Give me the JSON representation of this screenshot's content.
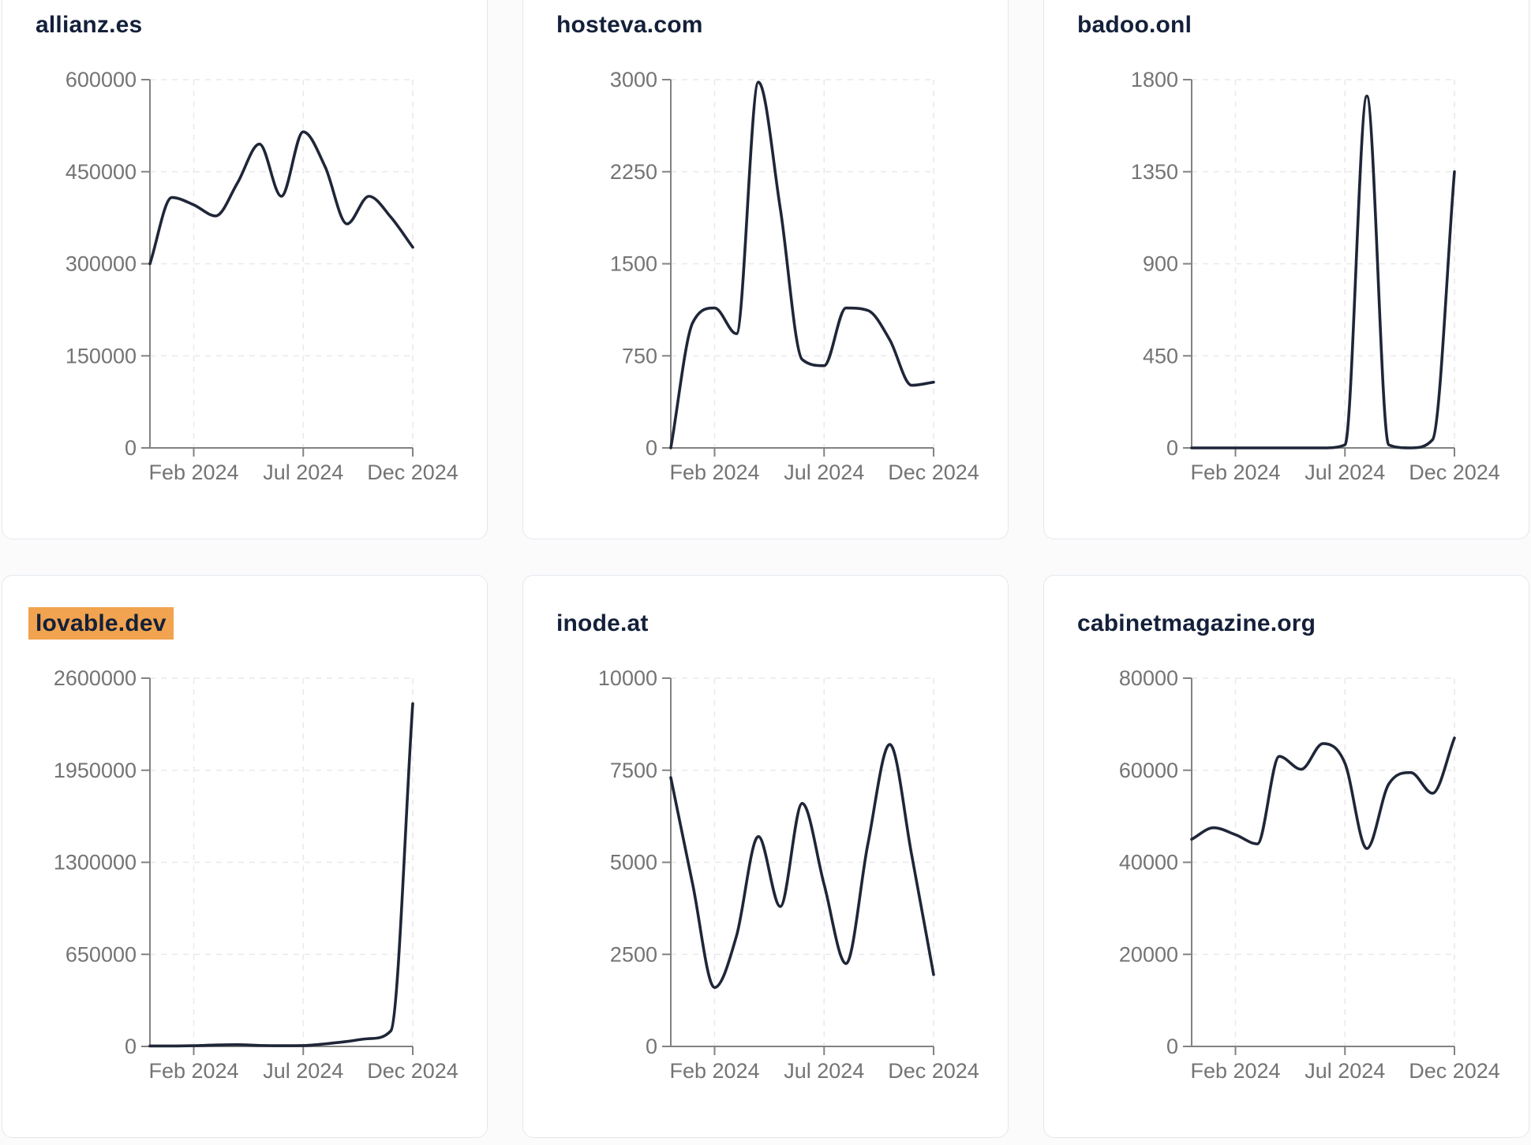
{
  "style": {
    "line_color": "#1f2638",
    "highlight_color": "#f1a34f",
    "axis_color": "#828282",
    "tick_label_color": "#747474",
    "gridline_color": "#e9e9e9",
    "card_border_color": "#e3e8ee",
    "title_color": "#14203a"
  },
  "chart_data": [
    {
      "type": "line",
      "title": "allianz.es",
      "highlighted": false,
      "x": [
        "Dec 2023",
        "Jan 2024",
        "Feb 2024",
        "Mar 2024",
        "Apr 2024",
        "May 2024",
        "Jun 2024",
        "Jul 2024",
        "Aug 2024",
        "Sep 2024",
        "Oct 2024",
        "Nov 2024",
        "Dec 2024"
      ],
      "values": [
        300000,
        408000,
        396000,
        378000,
        432000,
        495000,
        410000,
        515000,
        458000,
        365000,
        410000,
        376000,
        327000
      ],
      "ylim": [
        0,
        600000
      ],
      "y_ticks": [
        0,
        150000,
        300000,
        450000,
        600000
      ],
      "x_tick_labels": [
        "Feb 2024",
        "Jul 2024",
        "Dec 2024"
      ],
      "x_tick_indices": [
        2,
        7,
        12
      ],
      "grid": "dashed"
    },
    {
      "type": "line",
      "title": "hosteva.com",
      "highlighted": false,
      "x": [
        "Dec 2023",
        "Jan 2024",
        "Feb 2024",
        "Mar 2024",
        "Apr 2024",
        "May 2024",
        "Jun 2024",
        "Jul 2024",
        "Aug 2024",
        "Sep 2024",
        "Oct 2024",
        "Nov 2024",
        "Dec 2024"
      ],
      "values": [
        0,
        1020,
        1140,
        930,
        2980,
        1950,
        720,
        670,
        1140,
        1120,
        880,
        510,
        535
      ],
      "ylim": [
        0,
        3000
      ],
      "y_ticks": [
        0,
        750,
        1500,
        2250,
        3000
      ],
      "x_tick_labels": [
        "Feb 2024",
        "Jul 2024",
        "Dec 2024"
      ],
      "x_tick_indices": [
        2,
        7,
        12
      ],
      "grid": "dashed"
    },
    {
      "type": "line",
      "title": "badoo.onl",
      "highlighted": false,
      "x": [
        "Dec 2023",
        "Jan 2024",
        "Feb 2024",
        "Mar 2024",
        "Apr 2024",
        "May 2024",
        "Jun 2024",
        "Jul 2024",
        "Aug 2024",
        "Sep 2024",
        "Oct 2024",
        "Nov 2024",
        "Dec 2024"
      ],
      "values": [
        0,
        0,
        0,
        0,
        0,
        0,
        0,
        15,
        1720,
        15,
        0,
        40,
        1350
      ],
      "ylim": [
        0,
        1800
      ],
      "y_ticks": [
        0,
        450,
        900,
        1350,
        1800
      ],
      "x_tick_labels": [
        "Feb 2024",
        "Jul 2024",
        "Dec 2024"
      ],
      "x_tick_indices": [
        2,
        7,
        12
      ],
      "grid": "dashed"
    },
    {
      "type": "line",
      "title": "lovable.dev",
      "highlighted": true,
      "x": [
        "Dec 2023",
        "Jan 2024",
        "Feb 2024",
        "Mar 2024",
        "Apr 2024",
        "May 2024",
        "Jun 2024",
        "Jul 2024",
        "Aug 2024",
        "Sep 2024",
        "Oct 2024",
        "Nov 2024",
        "Dec 2024"
      ],
      "values": [
        3000,
        3000,
        5000,
        10000,
        12000,
        7000,
        5000,
        6000,
        18000,
        35000,
        55000,
        110000,
        2420000
      ],
      "ylim": [
        0,
        2600000
      ],
      "y_ticks": [
        0,
        650000,
        1300000,
        1950000,
        2600000
      ],
      "x_tick_labels": [
        "Feb 2024",
        "Jul 2024",
        "Dec 2024"
      ],
      "x_tick_indices": [
        2,
        7,
        12
      ],
      "grid": "dashed"
    },
    {
      "type": "line",
      "title": "inode.at",
      "highlighted": false,
      "x": [
        "Dec 2023",
        "Jan 2024",
        "Feb 2024",
        "Mar 2024",
        "Apr 2024",
        "May 2024",
        "Jun 2024",
        "Jul 2024",
        "Aug 2024",
        "Sep 2024",
        "Oct 2024",
        "Nov 2024",
        "Dec 2024"
      ],
      "values": [
        7300,
        4400,
        1600,
        3000,
        5700,
        3800,
        6600,
        4400,
        2250,
        5500,
        8200,
        5200,
        1950
      ],
      "ylim": [
        0,
        10000
      ],
      "y_ticks": [
        0,
        2500,
        5000,
        7500,
        10000
      ],
      "x_tick_labels": [
        "Feb 2024",
        "Jul 2024",
        "Dec 2024"
      ],
      "x_tick_indices": [
        2,
        7,
        12
      ],
      "grid": "dashed"
    },
    {
      "type": "line",
      "title": "cabinetmagazine.org",
      "highlighted": false,
      "x": [
        "Dec 2023",
        "Jan 2024",
        "Feb 2024",
        "Mar 2024",
        "Apr 2024",
        "May 2024",
        "Jun 2024",
        "Jul 2024",
        "Aug 2024",
        "Sep 2024",
        "Oct 2024",
        "Nov 2024",
        "Dec 2024"
      ],
      "values": [
        45000,
        47500,
        46000,
        44000,
        63000,
        60200,
        65800,
        61500,
        43000,
        57000,
        59500,
        55000,
        67000
      ],
      "ylim": [
        0,
        80000
      ],
      "y_ticks": [
        0,
        20000,
        40000,
        60000,
        80000
      ],
      "x_tick_labels": [
        "Feb 2024",
        "Jul 2024",
        "Dec 2024"
      ],
      "x_tick_indices": [
        2,
        7,
        12
      ],
      "grid": "dashed"
    }
  ]
}
